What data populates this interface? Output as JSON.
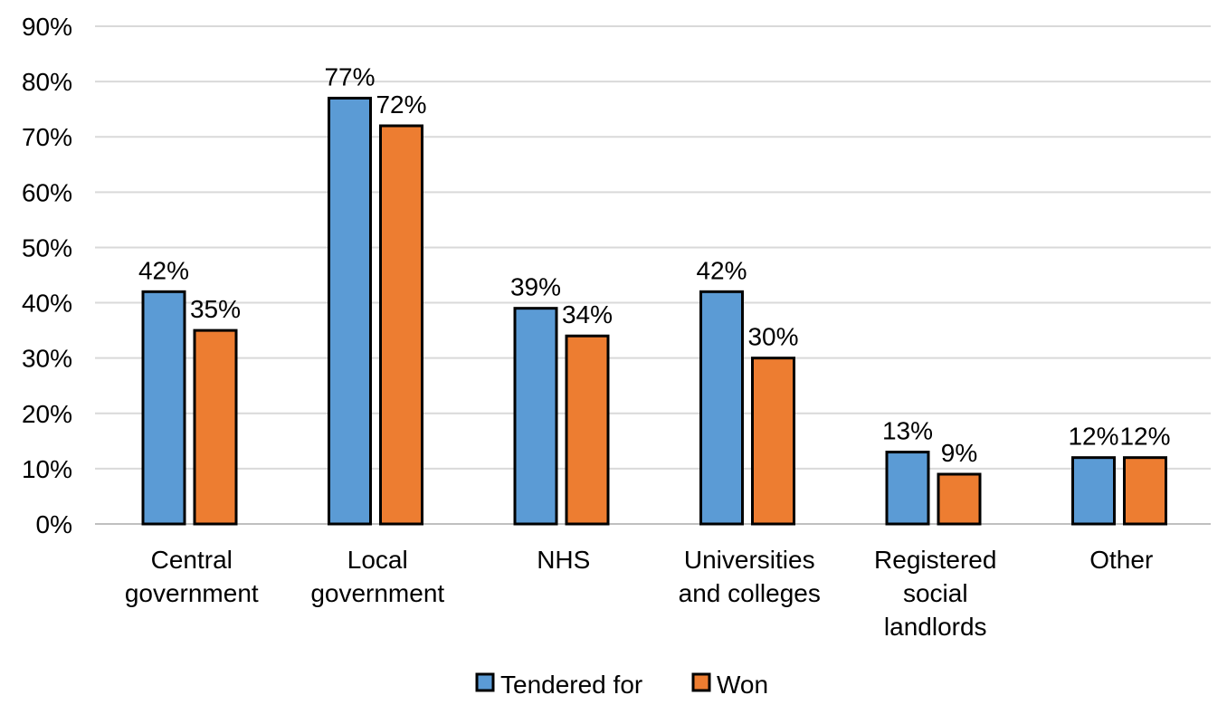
{
  "chart_data": {
    "type": "bar",
    "categories": [
      [
        "Central",
        "government"
      ],
      [
        "Local",
        "government"
      ],
      [
        "NHS"
      ],
      [
        "Universities",
        "and colleges"
      ],
      [
        "Registered",
        "social",
        "landlords"
      ],
      [
        "Other"
      ]
    ],
    "series": [
      {
        "name": "Tendered for",
        "color": "#5B9BD5",
        "values": [
          42,
          77,
          39,
          42,
          13,
          12
        ],
        "labels": [
          "42%",
          "77%",
          "39%",
          "42%",
          "13%",
          "12%"
        ]
      },
      {
        "name": "Won",
        "color": "#ED7D31",
        "values": [
          35,
          72,
          34,
          30,
          9,
          12
        ],
        "labels": [
          "35%",
          "72%",
          "34%",
          "30%",
          "9%",
          "12%"
        ]
      }
    ],
    "yticks": [
      "0%",
      "10%",
      "20%",
      "30%",
      "40%",
      "50%",
      "60%",
      "70%",
      "80%",
      "90%"
    ],
    "ylim": [
      0,
      90
    ],
    "grid": true,
    "legend": "bottom",
    "title": "",
    "xlabel": "",
    "ylabel": ""
  }
}
